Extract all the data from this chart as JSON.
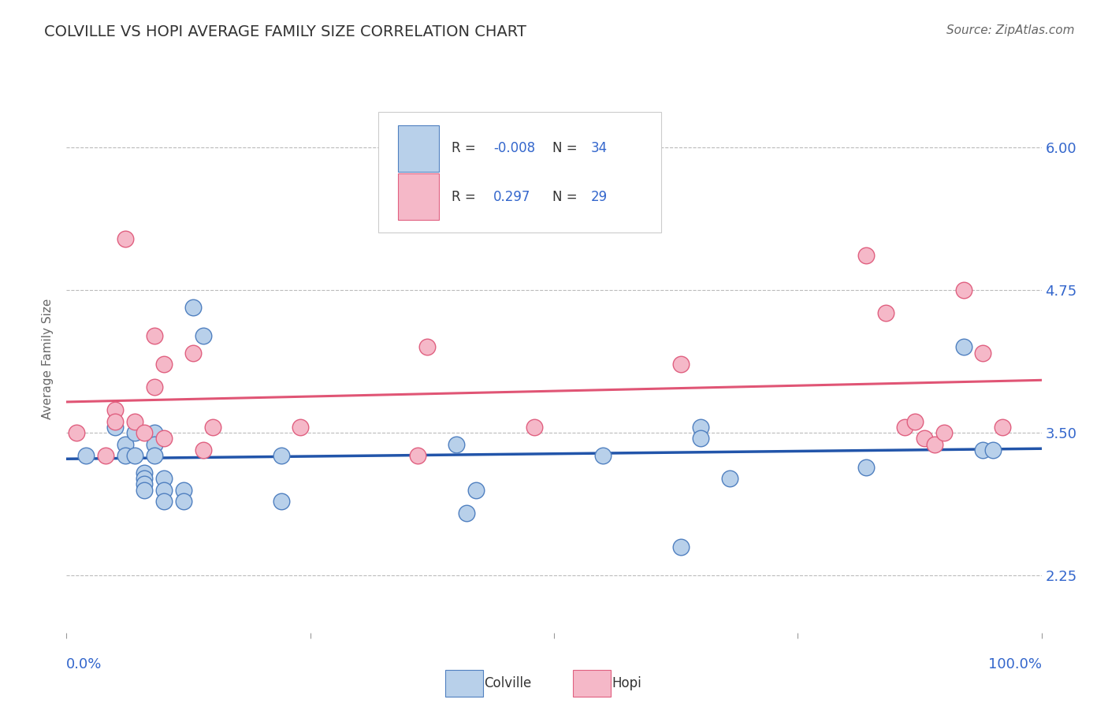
{
  "title": "COLVILLE VS HOPI AVERAGE FAMILY SIZE CORRELATION CHART",
  "source": "Source: ZipAtlas.com",
  "ylabel": "Average Family Size",
  "yticks": [
    2.25,
    3.5,
    4.75,
    6.0
  ],
  "xlim": [
    0.0,
    1.0
  ],
  "ylim": [
    1.75,
    6.55
  ],
  "colville_R": "-0.008",
  "colville_N": "34",
  "hopi_R": "0.297",
  "hopi_N": "29",
  "colville_face": "#b8d0ea",
  "colville_edge": "#5080c0",
  "hopi_face": "#f5b8c8",
  "hopi_edge": "#e06080",
  "colville_line": "#2255aa",
  "hopi_line": "#e05575",
  "blue_text": "#3366cc",
  "dark_text": "#333333",
  "gray_text": "#666666",
  "background": "#ffffff",
  "colville_x": [
    0.02,
    0.05,
    0.06,
    0.06,
    0.07,
    0.07,
    0.08,
    0.08,
    0.08,
    0.08,
    0.09,
    0.09,
    0.09,
    0.1,
    0.1,
    0.1,
    0.12,
    0.12,
    0.13,
    0.14,
    0.22,
    0.22,
    0.4,
    0.41,
    0.42,
    0.55,
    0.63,
    0.65,
    0.65,
    0.68,
    0.82,
    0.92,
    0.94,
    0.95
  ],
  "colville_y": [
    3.3,
    3.55,
    3.4,
    3.3,
    3.5,
    3.3,
    3.15,
    3.1,
    3.05,
    3.0,
    3.5,
    3.4,
    3.3,
    3.1,
    3.0,
    2.9,
    3.0,
    2.9,
    4.6,
    4.35,
    3.3,
    2.9,
    3.4,
    2.8,
    3.0,
    3.3,
    2.5,
    3.55,
    3.45,
    3.1,
    3.2,
    4.25,
    3.35,
    3.35
  ],
  "hopi_x": [
    0.01,
    0.04,
    0.05,
    0.05,
    0.06,
    0.07,
    0.08,
    0.09,
    0.09,
    0.1,
    0.1,
    0.13,
    0.14,
    0.15,
    0.24,
    0.36,
    0.37,
    0.48,
    0.63,
    0.82,
    0.84,
    0.86,
    0.87,
    0.88,
    0.89,
    0.9,
    0.92,
    0.94,
    0.96
  ],
  "hopi_y": [
    3.5,
    3.3,
    3.7,
    3.6,
    5.2,
    3.6,
    3.5,
    4.35,
    3.9,
    4.1,
    3.45,
    4.2,
    3.35,
    3.55,
    3.55,
    3.3,
    4.25,
    3.55,
    4.1,
    5.05,
    4.55,
    3.55,
    3.6,
    3.45,
    3.4,
    3.5,
    4.75,
    4.2,
    3.55
  ]
}
